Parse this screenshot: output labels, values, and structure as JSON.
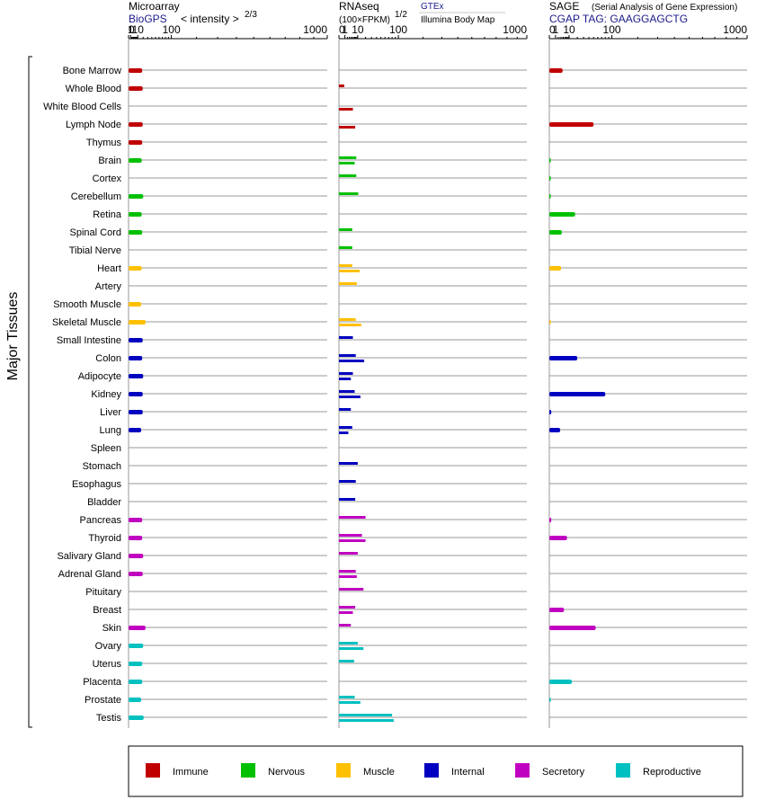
{
  "chart_data": {
    "type": "bar",
    "orientation": "horizontal",
    "y_axis_label": "Major Tissues",
    "categories": [
      "Bone Marrow",
      "Whole Blood",
      "White Blood Cells",
      "Lymph Node",
      "Thymus",
      "Brain",
      "Cortex",
      "Cerebellum",
      "Retina",
      "Spinal Cord",
      "Tibial Nerve",
      "Heart",
      "Artery",
      "Smooth Muscle",
      "Skeletal Muscle",
      "Small Intestine",
      "Colon",
      "Adipocyte",
      "Kidney",
      "Liver",
      "Lung",
      "Spleen",
      "Stomach",
      "Esophagus",
      "Bladder",
      "Pancreas",
      "Thyroid",
      "Salivary Gland",
      "Adrenal Gland",
      "Pituitary",
      "Breast",
      "Skin",
      "Ovary",
      "Uterus",
      "Placenta",
      "Prostate",
      "Testis"
    ],
    "category_group": [
      "Immune",
      "Immune",
      "Immune",
      "Immune",
      "Immune",
      "Nervous",
      "Nervous",
      "Nervous",
      "Nervous",
      "Nervous",
      "Nervous",
      "Muscle",
      "Muscle",
      "Muscle",
      "Muscle",
      "Internal",
      "Internal",
      "Internal",
      "Internal",
      "Internal",
      "Internal",
      "Internal",
      "Internal",
      "Internal",
      "Internal",
      "Secretory",
      "Secretory",
      "Secretory",
      "Secretory",
      "Secretory",
      "Secretory",
      "Secretory",
      "Reproductive",
      "Reproductive",
      "Reproductive",
      "Reproductive",
      "Reproductive"
    ],
    "groups": [
      {
        "name": "Immune",
        "color": "#c00000"
      },
      {
        "name": "Nervous",
        "color": "#00c000"
      },
      {
        "name": "Muscle",
        "color": "#ffc000"
      },
      {
        "name": "Internal",
        "color": "#0000c0"
      },
      {
        "name": "Secretory",
        "color": "#c000c0"
      },
      {
        "name": "Reproductive",
        "color": "#00c0c0"
      }
    ],
    "panels": [
      {
        "id": "microarray",
        "title": "Microarray",
        "source": "BioGPS",
        "scale_label": "< intensity >",
        "scale_exponent": "2/3",
        "scale": "power-2/3",
        "ticks": [
          0,
          1,
          10,
          100,
          1000
        ],
        "tick_labels": [
          "0",
          "1",
          "10",
          "100",
          "1000"
        ],
        "xlim": [
          0,
          1000
        ],
        "series": [
          {
            "values": [
              18,
              19,
              null,
              19,
              18,
              17,
              null,
              20,
              17,
              18,
              null,
              17,
              null,
              16,
              25,
              19,
              18,
              20,
              19,
              19,
              16,
              null,
              null,
              null,
              null,
              18,
              18,
              20,
              19,
              null,
              null,
              25,
              20,
              18,
              18,
              16,
              21
            ]
          }
        ]
      },
      {
        "id": "rnaseq",
        "title": "RNAseq",
        "scale_label": "(100×FPKM)",
        "scale_exponent": "1/2",
        "sources": [
          "GTEx",
          "Illumina Body Map"
        ],
        "scale": "power-1/2",
        "ticks": [
          0,
          1,
          10,
          100,
          1000
        ],
        "tick_labels": [
          "0",
          "1",
          "10",
          "100",
          "1000"
        ],
        "xlim": [
          0,
          1000
        ],
        "series": [
          {
            "name": "GTEx",
            "values": [
              null,
              0.8,
              null,
              null,
              null,
              8.5,
              8.5,
              10.5,
              null,
              5,
              5,
              5,
              9,
              null,
              8,
              5.5,
              8,
              5.5,
              7,
              4,
              5,
              null,
              10,
              8,
              7.5,
              20,
              15,
              10,
              8,
              17,
              7.5,
              4,
              10,
              6.5,
              null,
              7,
              80
            ]
          },
          {
            "name": "Illumina Body Map",
            "values": [
              null,
              null,
              5.5,
              7.5,
              null,
              7,
              null,
              null,
              null,
              null,
              null,
              12,
              null,
              null,
              14,
              null,
              18,
              4,
              13,
              null,
              2.5,
              null,
              null,
              null,
              null,
              null,
              20,
              null,
              9,
              null,
              5.5,
              null,
              17,
              null,
              null,
              13,
              85
            ]
          }
        ]
      },
      {
        "id": "sage",
        "title": "SAGE",
        "subtitle": "(Serial Analysis of Gene Expression)",
        "tag": "CGAP TAG: GAAGGAGCTG",
        "scale": "power-1/2",
        "ticks": [
          0,
          1,
          10,
          100,
          1000
        ],
        "tick_labels": [
          "0",
          "1",
          "10",
          "100",
          "1000"
        ],
        "xlim": [
          0,
          1000
        ],
        "series": [
          {
            "values": [
              4.5,
              null,
              null,
              50,
              null,
              0.05,
              0.05,
              0.05,
              17,
              4,
              null,
              3.5,
              null,
              null,
              0.05,
              null,
              20,
              null,
              80,
              0.1,
              3,
              null,
              null,
              null,
              null,
              0.1,
              8,
              null,
              null,
              null,
              5.5,
              55,
              null,
              null,
              13,
              0.05,
              null
            ]
          }
        ]
      }
    ]
  },
  "legend": [
    {
      "label": "Immune",
      "color": "#c00000"
    },
    {
      "label": "Nervous",
      "color": "#00c000"
    },
    {
      "label": "Muscle",
      "color": "#ffc000"
    },
    {
      "label": "Internal",
      "color": "#0000c0"
    },
    {
      "label": "Secretory",
      "color": "#c000c0"
    },
    {
      "label": "Reproductive",
      "color": "#00c0c0"
    }
  ]
}
